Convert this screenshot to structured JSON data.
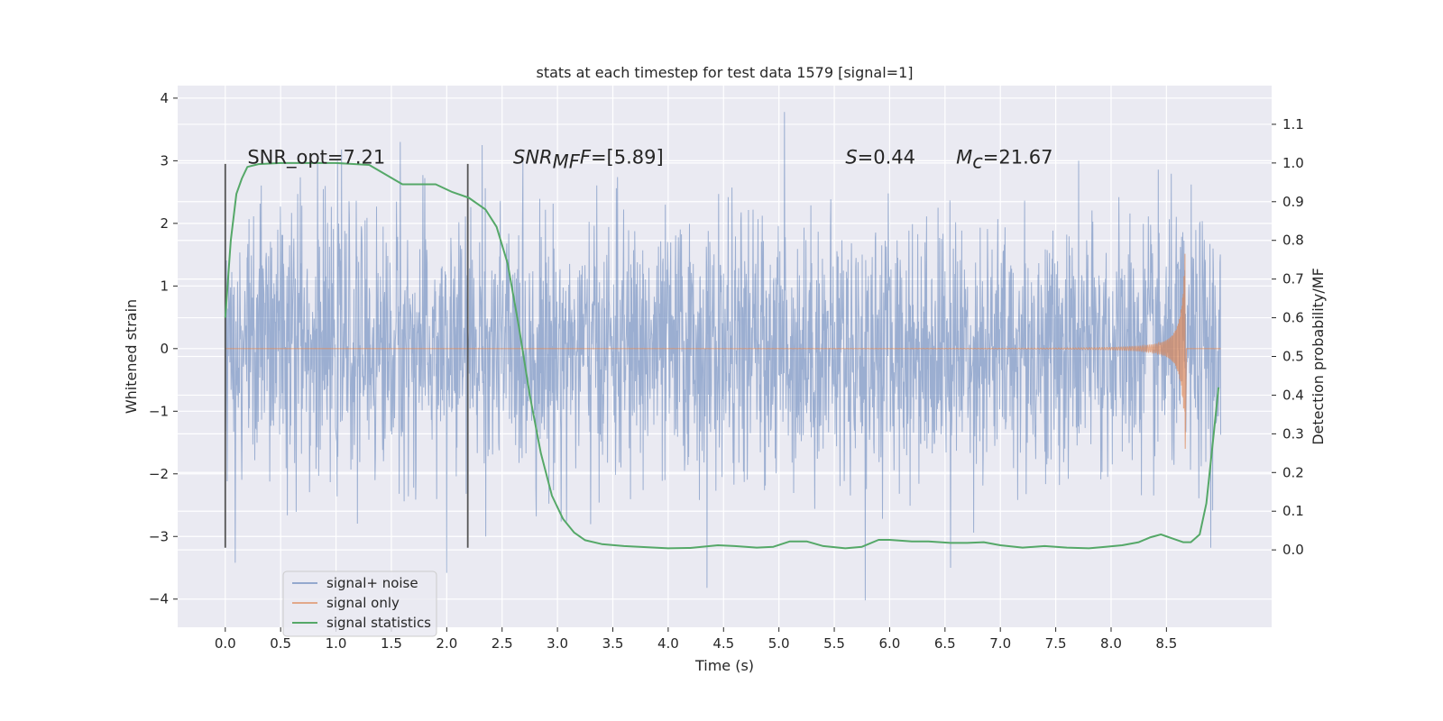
{
  "chart_data": {
    "type": "line",
    "title": "stats at each timestep for test data 1579 [signal=1]",
    "xlabel": "Time (s)",
    "ylabel": "Whitened strain",
    "y2label": "Detection probability/MF",
    "xlim": [
      -0.43,
      9.45
    ],
    "ylim": [
      -4.45,
      4.2
    ],
    "y2lim": [
      -0.2,
      1.2
    ],
    "x_ticks": [
      0.0,
      0.5,
      1.0,
      1.5,
      2.0,
      2.5,
      3.0,
      3.5,
      4.0,
      4.5,
      5.0,
      5.5,
      6.0,
      6.5,
      7.0,
      7.5,
      8.0,
      8.5
    ],
    "x_tick_labels": [
      "0.0",
      "0.5",
      "1.0",
      "1.5",
      "2.0",
      "2.5",
      "3.0",
      "3.5",
      "4.0",
      "4.5",
      "5.0",
      "5.5",
      "6.0",
      "6.5",
      "7.0",
      "7.5",
      "8.0",
      "8.5"
    ],
    "y_ticks": [
      -4,
      -3,
      -2,
      -1,
      0,
      1,
      2,
      3,
      4
    ],
    "y_tick_labels": [
      "−4",
      "−3",
      "−2",
      "−1",
      "0",
      "1",
      "2",
      "3",
      "4"
    ],
    "y2_ticks": [
      0.0,
      0.1,
      0.2,
      0.3,
      0.4,
      0.5,
      0.6,
      0.7,
      0.8,
      0.9,
      1.0,
      1.1
    ],
    "y2_tick_labels": [
      "0.0",
      "0.1",
      "0.2",
      "0.3",
      "0.4",
      "0.5",
      "0.6",
      "0.7",
      "0.8",
      "0.9",
      "1.0",
      "1.1"
    ],
    "grid": true,
    "legend_position": "lower-left",
    "background": "#eaeaf2",
    "vlines": [
      {
        "x": 0.0,
        "y": [
          -3.18,
          2.95
        ]
      },
      {
        "x": 2.19,
        "y": [
          -3.18,
          2.95
        ]
      }
    ],
    "annotations": [
      {
        "x": 0.2,
        "y": 3.0,
        "text": "SNR_opt=7.21"
      },
      {
        "x": 2.6,
        "y": 3.0,
        "base": "SNR",
        "sub": "MF",
        "rest": "F=[5.89]"
      },
      {
        "x": 5.6,
        "y": 3.0,
        "base": "S",
        "sub": "",
        "rest": "=0.44"
      },
      {
        "x": 6.6,
        "y": 3.0,
        "base": "M",
        "sub": "c",
        "rest": "=21.67"
      }
    ],
    "series": [
      {
        "name": "signal+ noise",
        "axis": "left",
        "style": "noise",
        "color": "#4c72b0",
        "t_range": [
          0.0,
          8.99
        ],
        "typical_amplitude": 1.0,
        "extremes": [
          {
            "x": 0.09,
            "y": -3.42
          },
          {
            "x": 1.05,
            "y": 3.18
          },
          {
            "x": 1.58,
            "y": 3.3
          },
          {
            "x": 2.0,
            "y": -3.58
          },
          {
            "x": 2.32,
            "y": 3.25
          },
          {
            "x": 4.35,
            "y": -3.82
          },
          {
            "x": 5.05,
            "y": 3.78
          },
          {
            "x": 5.78,
            "y": -4.02
          },
          {
            "x": 6.55,
            "y": -3.5
          },
          {
            "x": 8.9,
            "y": -3.18
          }
        ]
      },
      {
        "name": "signal only",
        "axis": "left",
        "style": "chirp",
        "color": "#dd8452",
        "t_start": 0.0,
        "t_merger": 8.67,
        "peak_positive": 1.68,
        "peak_negative": -1.6
      },
      {
        "name": "signal statistics",
        "axis": "right",
        "style": "line",
        "color": "#55a868",
        "x": [
          0.0,
          0.05,
          0.1,
          0.15,
          0.2,
          0.3,
          0.5,
          1.0,
          1.3,
          1.45,
          1.6,
          1.75,
          1.9,
          2.05,
          2.2,
          2.35,
          2.45,
          2.55,
          2.65,
          2.75,
          2.85,
          2.95,
          3.05,
          3.15,
          3.25,
          3.4,
          3.6,
          3.8,
          4.0,
          4.2,
          4.45,
          4.6,
          4.8,
          4.95,
          5.1,
          5.25,
          5.4,
          5.6,
          5.75,
          5.9,
          6.0,
          6.2,
          6.35,
          6.55,
          6.7,
          6.85,
          7.0,
          7.2,
          7.4,
          7.6,
          7.8,
          7.95,
          8.1,
          8.25,
          8.35,
          8.45,
          8.55,
          8.65,
          8.72,
          8.8,
          8.86,
          8.92,
          8.97
        ],
        "y": [
          0.6,
          0.8,
          0.92,
          0.96,
          0.99,
          0.997,
          1.0,
          1.0,
          0.995,
          0.97,
          0.945,
          0.945,
          0.945,
          0.925,
          0.91,
          0.88,
          0.835,
          0.74,
          0.58,
          0.4,
          0.25,
          0.14,
          0.08,
          0.045,
          0.025,
          0.015,
          0.01,
          0.007,
          0.004,
          0.005,
          0.012,
          0.01,
          0.006,
          0.008,
          0.022,
          0.022,
          0.01,
          0.004,
          0.008,
          0.026,
          0.026,
          0.022,
          0.022,
          0.018,
          0.018,
          0.02,
          0.012,
          0.006,
          0.01,
          0.006,
          0.004,
          0.008,
          0.012,
          0.02,
          0.032,
          0.04,
          0.03,
          0.02,
          0.02,
          0.04,
          0.12,
          0.28,
          0.42
        ]
      }
    ]
  }
}
